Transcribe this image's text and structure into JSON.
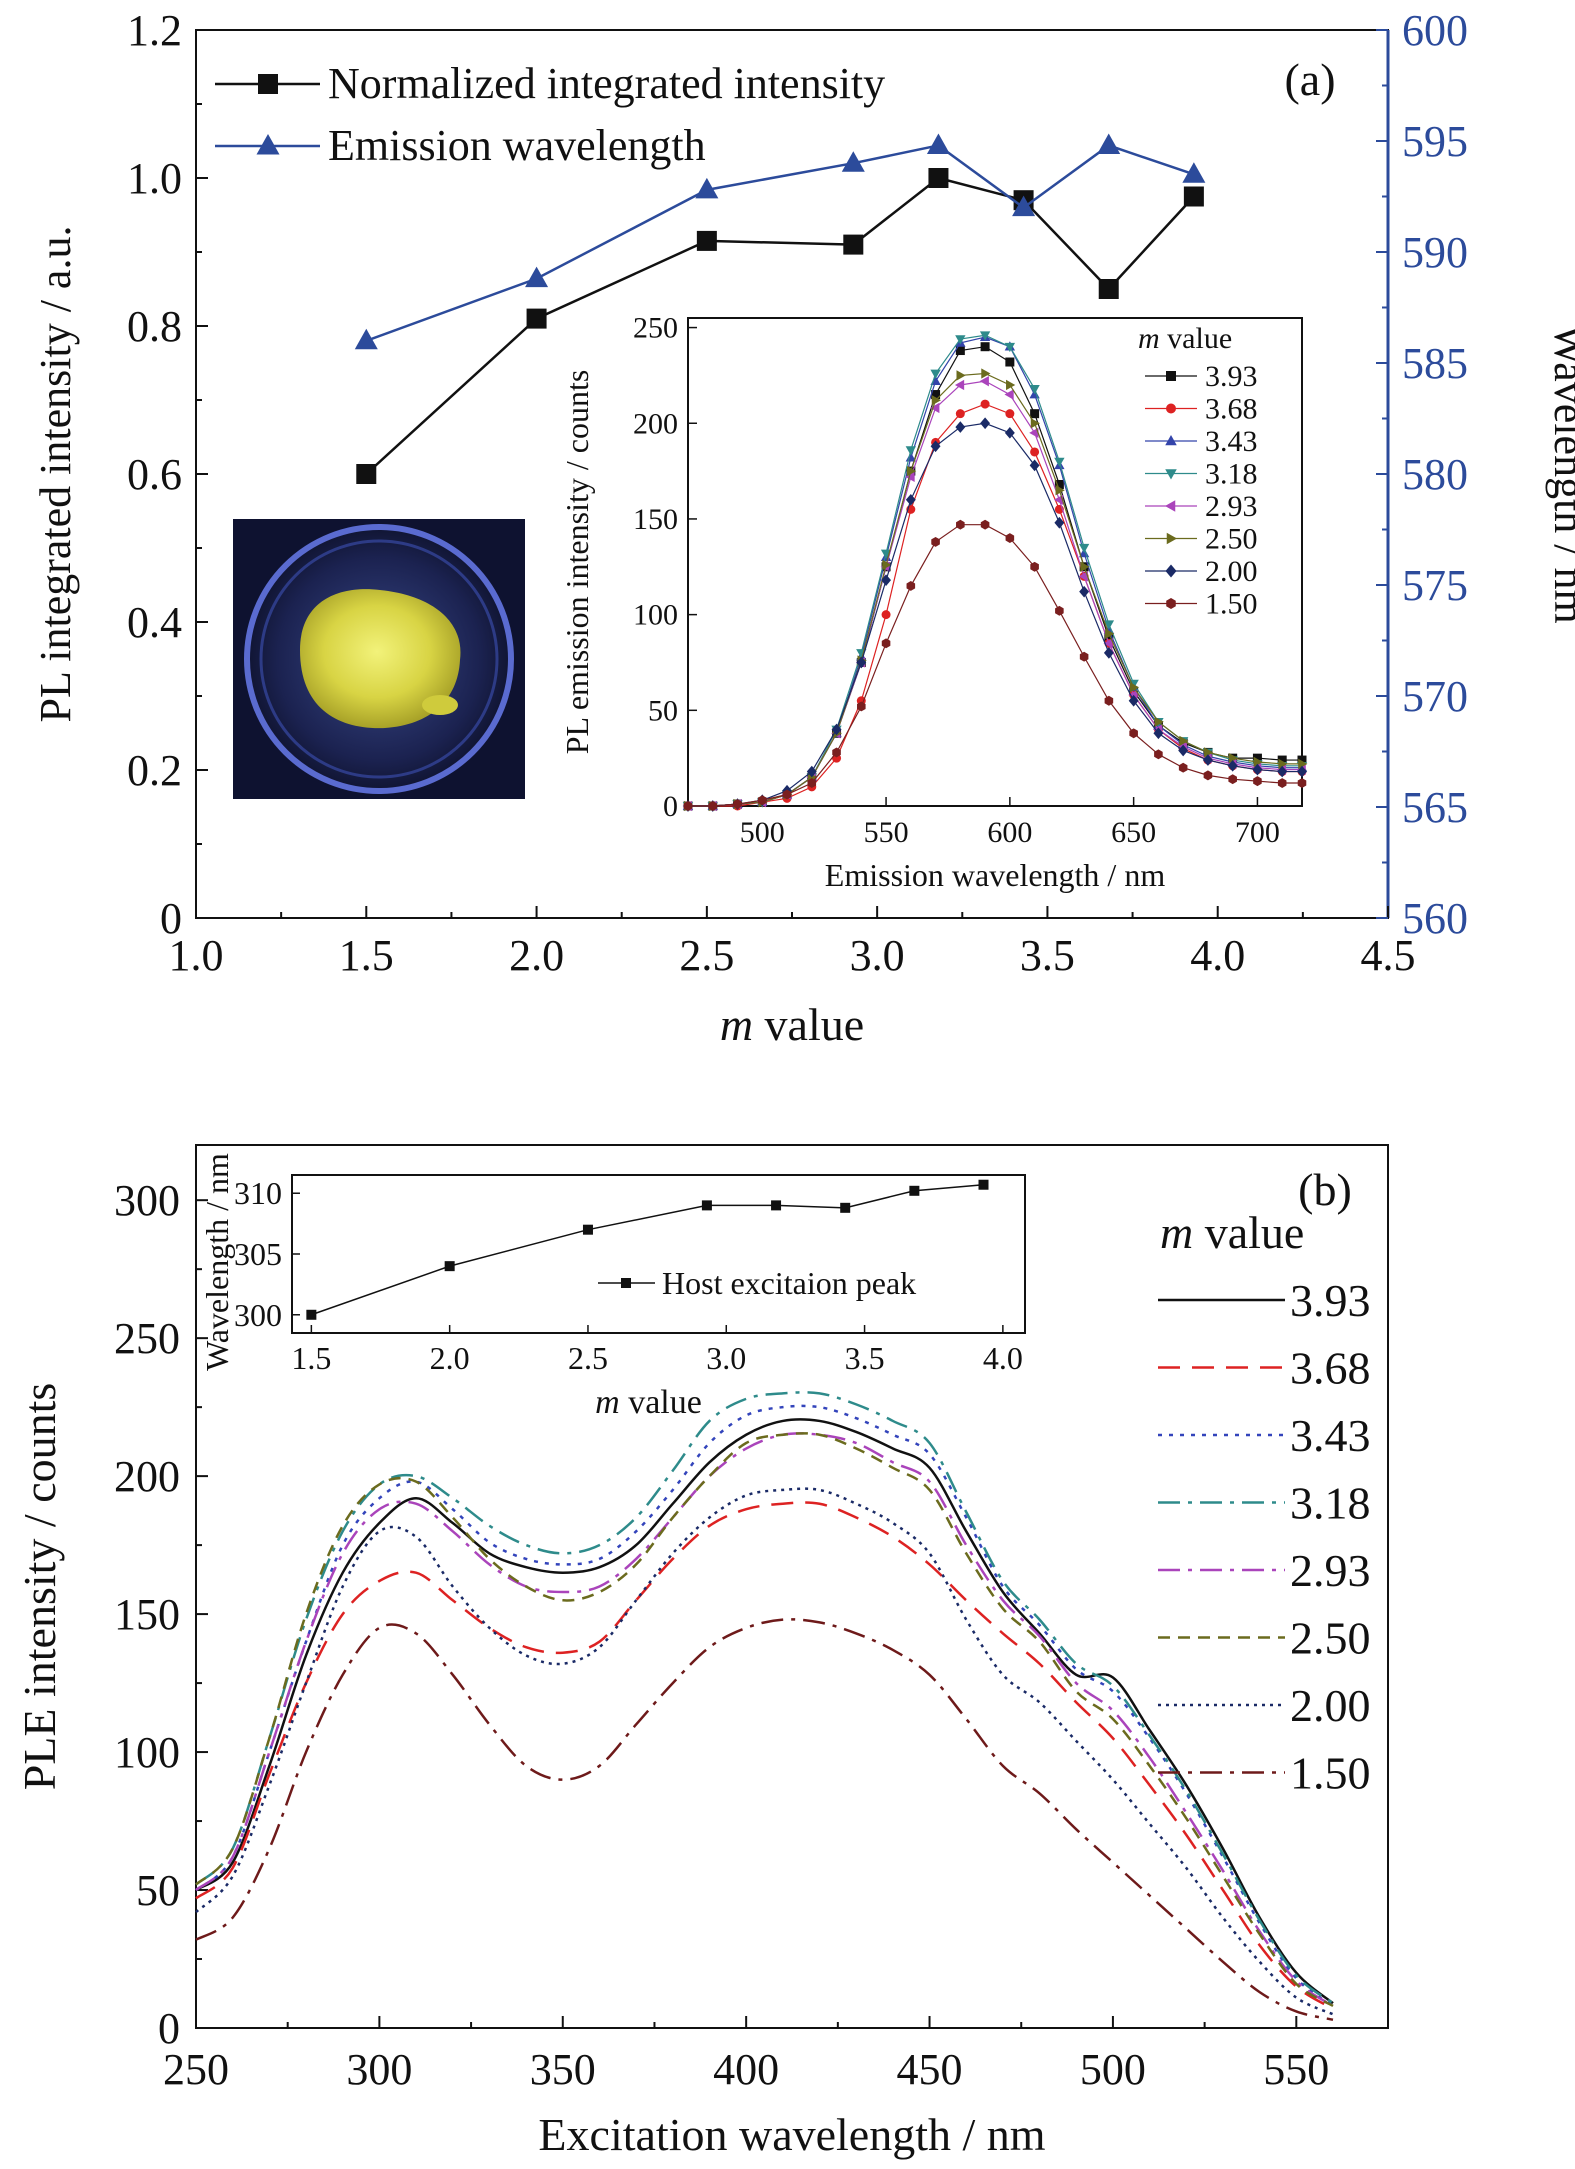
{
  "chart_data": [
    {
      "panel": "(a)",
      "type": "line",
      "xlabel": "m value",
      "ylabel": "PL integrated intensity / a.u.",
      "y2label": "Wavelength / nm",
      "xlim": [
        1.0,
        4.5
      ],
      "ylim": [
        0,
        1.2
      ],
      "y2lim": [
        560,
        600
      ],
      "xticks": [
        "1.0",
        "1.5",
        "2.0",
        "2.5",
        "3.0",
        "3.5",
        "4.0",
        "4.5"
      ],
      "yticks": [
        "0",
        "0.2",
        "0.4",
        "0.6",
        "0.8",
        "1.0",
        "1.2"
      ],
      "y2ticks": [
        "560",
        "565",
        "570",
        "575",
        "580",
        "585",
        "590",
        "595",
        "600"
      ],
      "x": [
        1.5,
        2.0,
        2.5,
        2.93,
        3.18,
        3.43,
        3.68,
        3.93
      ],
      "series": [
        {
          "name": "Normalized integrated intensity",
          "axis": "left",
          "marker": "square",
          "color": "#111111",
          "values": [
            0.6,
            0.81,
            0.915,
            0.91,
            1.0,
            0.97,
            0.85,
            0.975
          ]
        },
        {
          "name": "Emission wavelength",
          "axis": "right",
          "marker": "triangle",
          "color": "#2c4b9b",
          "values": [
            586.0,
            588.8,
            592.8,
            594.0,
            594.8,
            592.0,
            594.8,
            593.5
          ]
        }
      ],
      "legend": "top-left",
      "inset_photo": "yellow phosphor powder in petri dish",
      "inset": {
        "type": "line",
        "xlabel": "Emission wavelength / nm",
        "ylabel": "PL emission intensity / counts",
        "xlim": [
          470,
          718
        ],
        "ylim": [
          0,
          255
        ],
        "xticks": [
          "500",
          "550",
          "600",
          "650",
          "700"
        ],
        "yticks": [
          "0",
          "50",
          "100",
          "150",
          "200",
          "250"
        ],
        "legend_title": "m value",
        "legend": "top-right",
        "x": [
          470,
          480,
          490,
          500,
          510,
          520,
          530,
          540,
          550,
          560,
          570,
          580,
          590,
          600,
          610,
          620,
          630,
          640,
          650,
          660,
          670,
          680,
          690,
          700,
          710,
          718
        ],
        "series": [
          {
            "name": "3.93",
            "color": "#111111",
            "marker": "square",
            "values": [
              0,
              0,
              1,
              2,
              6,
              15,
              38,
              75,
              125,
              175,
              215,
              238,
              240,
              232,
              205,
              168,
              125,
              88,
              60,
              42,
              33,
              28,
              25,
              25,
              24,
              24
            ]
          },
          {
            "name": "3.68",
            "color": "#dd2222",
            "marker": "circle",
            "values": [
              0,
              0,
              0,
              2,
              4,
              10,
              25,
              55,
              100,
              155,
              190,
              205,
              210,
              205,
              185,
              155,
              120,
              85,
              58,
              40,
              30,
              24,
              21,
              19,
              18,
              18
            ]
          },
          {
            "name": "3.43",
            "color": "#3344aa",
            "marker": "triangle",
            "values": [
              0,
              0,
              1,
              2,
              6,
              15,
              38,
              78,
              130,
              182,
              222,
              242,
              245,
              240,
              215,
              178,
              132,
              92,
              62,
              42,
              32,
              26,
              23,
              21,
              20,
              20
            ]
          },
          {
            "name": "3.18",
            "color": "#2e8b8b",
            "marker": "triangle-down",
            "values": [
              0,
              0,
              1,
              2,
              6,
              15,
              40,
              80,
              132,
              186,
              226,
              244,
              246,
              240,
              218,
              180,
              135,
              95,
              64,
              44,
              34,
              28,
              24,
              22,
              21,
              21
            ]
          },
          {
            "name": "2.93",
            "color": "#aa44bb",
            "marker": "triangle-left",
            "values": [
              0,
              0,
              1,
              2,
              6,
              15,
              38,
              75,
              125,
              172,
              208,
              220,
              222,
              215,
              195,
              160,
              120,
              85,
              58,
              40,
              31,
              25,
              22,
              20,
              19,
              19
            ]
          },
          {
            "name": "2.50",
            "color": "#6b6b1e",
            "marker": "triangle-right",
            "values": [
              0,
              0,
              1,
              2,
              6,
              15,
              38,
              76,
              126,
              175,
              212,
              225,
              226,
              220,
              200,
              165,
              125,
              90,
              62,
              44,
              34,
              28,
              25,
              23,
              22,
              22
            ]
          },
          {
            "name": "2.00",
            "color": "#1a2a66",
            "marker": "diamond",
            "values": [
              0,
              0,
              1,
              3,
              8,
              18,
              40,
              75,
              118,
              160,
              188,
              198,
              200,
              195,
              178,
              148,
              112,
              80,
              55,
              38,
              29,
              24,
              21,
              19,
              18,
              18
            ]
          },
          {
            "name": "1.50",
            "color": "#7a1f1f",
            "marker": "hexagon",
            "values": [
              0,
              0,
              1,
              3,
              6,
              12,
              28,
              52,
              85,
              115,
              138,
              147,
              147,
              140,
              125,
              102,
              78,
              55,
              38,
              27,
              20,
              16,
              14,
              13,
              12,
              12
            ]
          }
        ]
      }
    },
    {
      "panel": "(b)",
      "type": "line",
      "xlabel": "Excitation wavelength / nm",
      "ylabel": "PLE intensity / counts",
      "xlim": [
        250,
        575
      ],
      "ylim": [
        0,
        320
      ],
      "xticks": [
        "250",
        "300",
        "350",
        "400",
        "450",
        "500",
        "550"
      ],
      "yticks": [
        "0",
        "50",
        "100",
        "150",
        "200",
        "250",
        "300"
      ],
      "legend_title": "m value",
      "legend": "right",
      "x": [
        250,
        260,
        270,
        280,
        290,
        300,
        310,
        320,
        330,
        340,
        350,
        360,
        370,
        380,
        390,
        400,
        410,
        420,
        430,
        440,
        450,
        460,
        470,
        480,
        490,
        500,
        510,
        520,
        530,
        540,
        550,
        560
      ],
      "series": [
        {
          "name": "3.93",
          "color": "#111111",
          "dash": "none",
          "values": [
            50,
            60,
            95,
            135,
            165,
            183,
            192,
            183,
            172,
            167,
            165,
            167,
            175,
            190,
            205,
            215,
            220,
            220,
            216,
            210,
            203,
            180,
            158,
            143,
            128,
            127,
            108,
            88,
            65,
            40,
            20,
            9
          ]
        },
        {
          "name": "3.68",
          "color": "#dd2222",
          "dash": "dash",
          "values": [
            47,
            58,
            92,
            125,
            150,
            162,
            165,
            155,
            145,
            138,
            136,
            140,
            155,
            170,
            182,
            188,
            190,
            190,
            185,
            178,
            168,
            155,
            143,
            132,
            118,
            105,
            88,
            70,
            50,
            30,
            15,
            7
          ]
        },
        {
          "name": "3.43",
          "color": "#3344bb",
          "dash": "dot",
          "values": [
            50,
            62,
            100,
            140,
            175,
            192,
            198,
            188,
            176,
            170,
            168,
            170,
            180,
            195,
            212,
            222,
            225,
            225,
            221,
            215,
            208,
            185,
            160,
            146,
            130,
            122,
            105,
            85,
            62,
            38,
            18,
            8
          ]
        },
        {
          "name": "3.18",
          "color": "#2e8b8b",
          "dash": "dashdot",
          "values": [
            52,
            65,
            105,
            148,
            180,
            197,
            200,
            192,
            182,
            175,
            172,
            175,
            185,
            202,
            220,
            228,
            230,
            230,
            226,
            220,
            212,
            187,
            162,
            148,
            132,
            124,
            106,
            86,
            63,
            39,
            19,
            9
          ]
        },
        {
          "name": "2.93",
          "color": "#aa44bb",
          "dash": "dashdot",
          "values": [
            50,
            62,
            100,
            140,
            172,
            188,
            190,
            180,
            168,
            160,
            158,
            160,
            170,
            185,
            200,
            210,
            215,
            215,
            212,
            205,
            198,
            175,
            155,
            142,
            125,
            115,
            98,
            78,
            57,
            35,
            17,
            8
          ]
        },
        {
          "name": "2.50",
          "color": "#6b6b1e",
          "dash": "shortdash",
          "values": [
            52,
            65,
            105,
            150,
            182,
            197,
            198,
            185,
            170,
            160,
            155,
            158,
            168,
            185,
            200,
            212,
            215,
            215,
            210,
            203,
            195,
            172,
            152,
            140,
            122,
            112,
            95,
            76,
            55,
            34,
            16,
            8
          ]
        },
        {
          "name": "2.00",
          "color": "#1a2a66",
          "dash": "finedot",
          "values": [
            42,
            55,
            88,
            125,
            160,
            180,
            178,
            160,
            145,
            135,
            132,
            138,
            155,
            172,
            185,
            193,
            195,
            195,
            190,
            183,
            172,
            148,
            128,
            118,
            104,
            90,
            74,
            58,
            40,
            24,
            11,
            5
          ]
        },
        {
          "name": "1.50",
          "color": "#6e1a1a",
          "dash": "dashdot",
          "values": [
            32,
            40,
            65,
            100,
            128,
            145,
            143,
            128,
            110,
            95,
            90,
            95,
            110,
            125,
            138,
            145,
            148,
            147,
            143,
            137,
            128,
            112,
            95,
            85,
            72,
            60,
            48,
            36,
            24,
            13,
            6,
            3
          ]
        }
      ],
      "inset": {
        "type": "line",
        "xlabel": "m value",
        "ylabel": "Wavelength / nm",
        "xlim": [
          1.43,
          4.08
        ],
        "ylim": [
          298.5,
          311.5
        ],
        "xticks": [
          "1.5",
          "2.0",
          "2.5",
          "3.0",
          "3.5",
          "4.0"
        ],
        "yticks": [
          "300",
          "305",
          "310"
        ],
        "series": [
          {
            "name": "Host excitaion peak",
            "marker": "square",
            "color": "#111111",
            "x": [
              1.5,
              2.0,
              2.5,
              2.93,
              3.18,
              3.43,
              3.68,
              3.93
            ],
            "values": [
              300,
              304,
              307,
              309,
              309,
              308.8,
              310.2,
              310.7
            ]
          }
        ],
        "legend": "bottom-right"
      }
    }
  ]
}
